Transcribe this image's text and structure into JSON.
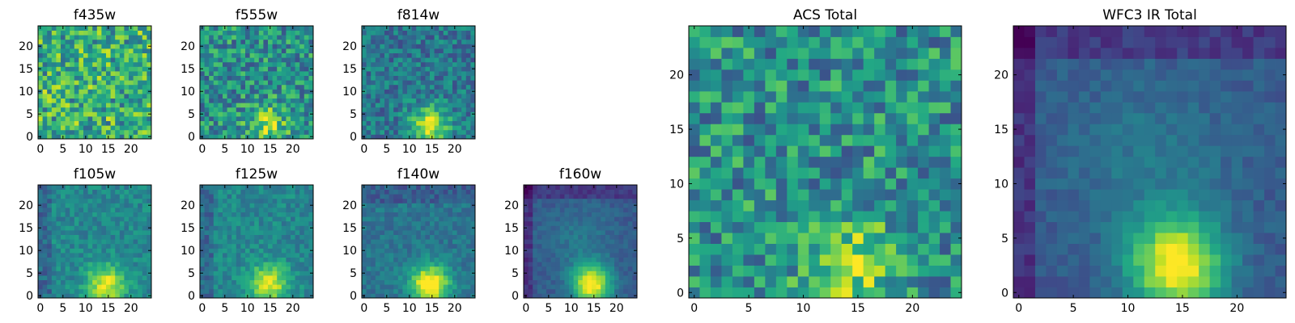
{
  "figure": {
    "description_colormap": "viridis",
    "colors": [
      "#440154",
      "#3b528b",
      "#21918c",
      "#5ec962",
      "#fde725"
    ]
  },
  "chart_data": [
    {
      "type": "heatmap",
      "title": "f435w",
      "xticks": [
        "0",
        "5",
        "10",
        "15",
        "20"
      ],
      "yticks": [
        "0",
        "5",
        "10",
        "15",
        "20"
      ],
      "xlim": [
        -0.5,
        24.5
      ],
      "ylim": [
        -0.5,
        24.5
      ],
      "grid_size": 25,
      "pattern": "noise",
      "seed": 11
    },
    {
      "type": "heatmap",
      "title": "f555w",
      "xticks": [
        "0",
        "5",
        "10",
        "15",
        "20"
      ],
      "yticks": [
        "0",
        "5",
        "10",
        "15",
        "20"
      ],
      "xlim": [
        -0.5,
        24.5
      ],
      "ylim": [
        -0.5,
        24.5
      ],
      "grid_size": 25,
      "pattern": "noise_blob",
      "seed": 23
    },
    {
      "type": "heatmap",
      "title": "f814w",
      "xticks": [
        "0",
        "5",
        "10",
        "15",
        "20"
      ],
      "yticks": [
        "0",
        "5",
        "10",
        "15",
        "20"
      ],
      "xlim": [
        -0.5,
        24.5
      ],
      "ylim": [
        -0.5,
        24.5
      ],
      "grid_size": 25,
      "pattern": "faint_blob",
      "seed": 37
    },
    {
      "type": "heatmap",
      "title": "f105w",
      "xticks": [
        "0",
        "5",
        "10",
        "15",
        "20"
      ],
      "yticks": [
        "0",
        "5",
        "10",
        "15",
        "20"
      ],
      "xlim": [
        -0.5,
        24.5
      ],
      "ylim": [
        -0.5,
        24.5
      ],
      "grid_size": 25,
      "pattern": "smooth_blob",
      "seed": 41
    },
    {
      "type": "heatmap",
      "title": "f125w",
      "xticks": [
        "0",
        "5",
        "10",
        "15",
        "20"
      ],
      "yticks": [
        "0",
        "5",
        "10",
        "15",
        "20"
      ],
      "xlim": [
        -0.5,
        24.5
      ],
      "ylim": [
        -0.5,
        24.5
      ],
      "grid_size": 25,
      "pattern": "smooth_blob",
      "seed": 53
    },
    {
      "type": "heatmap",
      "title": "f140w",
      "xticks": [
        "0",
        "5",
        "10",
        "15",
        "20"
      ],
      "yticks": [
        "0",
        "5",
        "10",
        "15",
        "20"
      ],
      "xlim": [
        -0.5,
        24.5
      ],
      "ylim": [
        -0.5,
        24.5
      ],
      "grid_size": 25,
      "pattern": "strong_blob",
      "seed": 67
    },
    {
      "type": "heatmap",
      "title": "f160w",
      "xticks": [
        "0",
        "5",
        "10",
        "15",
        "20"
      ],
      "yticks": [
        "0",
        "5",
        "10",
        "15",
        "20"
      ],
      "xlim": [
        -0.5,
        24.5
      ],
      "ylim": [
        -0.5,
        24.5
      ],
      "grid_size": 25,
      "pattern": "strong_blob_dark",
      "seed": 71
    },
    {
      "type": "heatmap",
      "title": "ACS Total",
      "xticks": [
        "0",
        "5",
        "10",
        "15",
        "20"
      ],
      "yticks": [
        "0",
        "5",
        "10",
        "15",
        "20"
      ],
      "xlim": [
        -0.5,
        24.5
      ],
      "ylim": [
        -0.5,
        24.5
      ],
      "grid_size": 25,
      "pattern": "noise_blob",
      "seed": 83
    },
    {
      "type": "heatmap",
      "title": "WFC3 IR Total",
      "xticks": [
        "0",
        "5",
        "10",
        "15",
        "20"
      ],
      "yticks": [
        "0",
        "5",
        "10",
        "15",
        "20"
      ],
      "xlim": [
        -0.5,
        24.5
      ],
      "ylim": [
        -0.5,
        24.5
      ],
      "grid_size": 25,
      "pattern": "strong_blob_dark",
      "seed": 97
    }
  ]
}
